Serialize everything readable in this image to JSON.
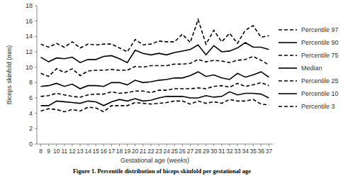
{
  "chart_data": {
    "type": "line",
    "title": "Figure 1. Percentile distribution of biceps skinfold per gestational age",
    "x_label": "Gestational age (weeks)",
    "y_label": "Biceps skinfold (mm)",
    "categories": [
      "8",
      "9",
      "10",
      "11",
      "12",
      "13",
      "14",
      "15",
      "16",
      "17",
      "18",
      "19",
      "20",
      "21",
      "22",
      "23",
      "24",
      "25",
      "26",
      "27",
      "28",
      "29",
      "30",
      "31",
      "32",
      "33",
      "34",
      "35",
      "36",
      "37"
    ],
    "ylim": [
      0,
      18
    ],
    "yticks": [
      0,
      2,
      4,
      6,
      8,
      10,
      12,
      14,
      16,
      18
    ],
    "legend": "right",
    "series": [
      {
        "name": "Percentile 97",
        "color": "#000000",
        "line_style": "dashed",
        "values": [
          13.0,
          12.6,
          13.1,
          12.6,
          13.3,
          12.5,
          13.0,
          12.9,
          13.0,
          13.0,
          12.5,
          12.0,
          13.6,
          12.9,
          13.0,
          13.4,
          13.3,
          13.3,
          14.3,
          13.2,
          16.2,
          13.0,
          14.8,
          13.3,
          14.4,
          13.1,
          14.8,
          15.4,
          13.9,
          14.1
        ]
      },
      {
        "name": "Percentile 90",
        "color": "#000000",
        "line_style": "solid",
        "values": [
          11.3,
          10.7,
          11.2,
          11.1,
          11.3,
          10.6,
          11.0,
          11.0,
          11.4,
          11.5,
          11.1,
          10.6,
          12.2,
          11.8,
          11.6,
          11.8,
          11.6,
          11.9,
          12.1,
          12.3,
          12.9,
          11.6,
          12.8,
          12.0,
          12.1,
          12.5,
          13.2,
          12.6,
          12.6,
          12.3
        ]
      },
      {
        "name": "Percentile 75",
        "color": "#000000",
        "line_style": "dashed",
        "values": [
          9.2,
          8.8,
          9.8,
          9.3,
          9.8,
          8.9,
          9.5,
          9.6,
          9.6,
          9.7,
          9.6,
          9.6,
          10.1,
          10.0,
          10.2,
          10.2,
          10.2,
          10.4,
          10.4,
          10.5,
          11.0,
          10.7,
          10.9,
          10.8,
          10.6,
          10.9,
          11.0,
          11.4,
          10.9,
          10.3
        ]
      },
      {
        "name": "Median",
        "color": "#000000",
        "line_style": "solid",
        "values": [
          7.5,
          7.6,
          7.9,
          7.5,
          7.8,
          7.2,
          7.6,
          7.6,
          7.5,
          8.0,
          8.0,
          7.7,
          8.3,
          8.0,
          8.1,
          8.3,
          8.4,
          8.6,
          8.6,
          8.9,
          9.4,
          8.8,
          9.0,
          8.6,
          8.4,
          9.2,
          8.7,
          9.0,
          9.4,
          8.7
        ]
      },
      {
        "name": "Percentile 25",
        "color": "#000000",
        "line_style": "dashed",
        "values": [
          6.2,
          6.3,
          6.6,
          6.4,
          6.2,
          6.1,
          6.4,
          6.5,
          6.5,
          6.8,
          6.6,
          6.7,
          6.9,
          6.9,
          6.7,
          7.0,
          7.0,
          7.2,
          7.2,
          7.2,
          7.3,
          7.2,
          7.5,
          7.6,
          7.4,
          7.9,
          7.5,
          7.7,
          8.0,
          7.6
        ]
      },
      {
        "name": "Percentile 10",
        "color": "#000000",
        "line_style": "solid",
        "values": [
          5.0,
          5.0,
          5.6,
          5.5,
          5.4,
          5.3,
          5.6,
          5.5,
          5.0,
          5.5,
          5.8,
          5.6,
          5.9,
          5.6,
          5.7,
          6.0,
          6.2,
          6.2,
          6.2,
          6.0,
          6.0,
          6.3,
          6.1,
          6.2,
          6.8,
          6.4,
          6.6,
          6.6,
          6.5,
          6.0
        ]
      },
      {
        "name": "Percentile 3",
        "color": "#000000",
        "line_style": "dashed",
        "values": [
          4.3,
          4.6,
          4.5,
          4.2,
          4.5,
          4.3,
          4.8,
          4.7,
          4.2,
          5.0,
          5.0,
          5.0,
          5.4,
          5.3,
          5.2,
          5.3,
          5.4,
          5.6,
          5.6,
          5.2,
          5.6,
          5.3,
          5.5,
          5.3,
          5.8,
          5.6,
          5.6,
          5.8,
          5.2,
          5.1
        ]
      }
    ]
  }
}
